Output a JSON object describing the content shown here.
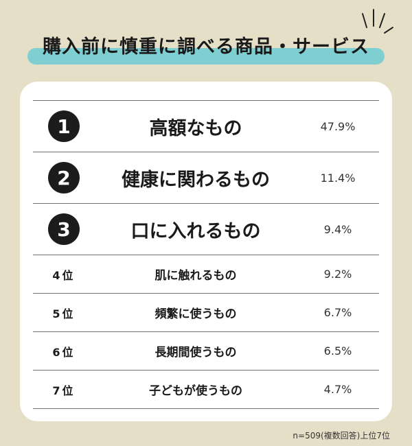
{
  "title": "購入前に慎重に調べる商品・サービス",
  "rows": [
    {
      "rank": "1",
      "item": "高額なもの",
      "percent": "47.9%"
    },
    {
      "rank": "2",
      "item": "健康に関わるもの",
      "percent": "11.4%"
    },
    {
      "rank": "3",
      "item": "口に入れるもの",
      "percent": "9.4%"
    },
    {
      "rank": "4位",
      "item": "肌に触れるもの",
      "percent": "9.2%"
    },
    {
      "rank": "5位",
      "item": "頻繁に使うもの",
      "percent": "6.7%"
    },
    {
      "rank": "6位",
      "item": "長期間使うもの",
      "percent": "6.5%"
    },
    {
      "rank": "7位",
      "item": "子どもが使うもの",
      "percent": "4.7%"
    }
  ],
  "footnote": "n=509(複数回答)上位7位",
  "colors": {
    "background": "#e6dfc8",
    "highlight": "#7fcfd2",
    "card": "#ffffff",
    "badge": "#1c1c1c"
  }
}
